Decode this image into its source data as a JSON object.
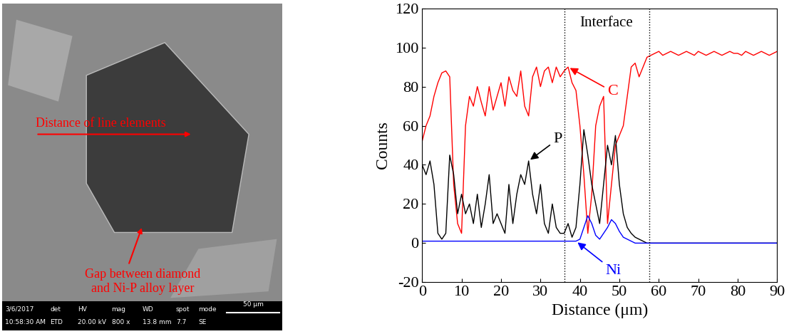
{
  "image": {
    "annotations": [
      "Distance of line elements",
      "Gap between diamond\nand Ni-P alloy layer"
    ],
    "info_bar": {
      "header": [
        "3/6/2017",
        "det",
        "HV",
        "mag",
        "WD",
        "spot",
        "mode"
      ],
      "values": [
        "10:58:30 AM",
        "ETD",
        "20.00 kV",
        "800 x",
        "13.8 mm",
        "7.7",
        "SE"
      ],
      "scale_bar": "50 μm"
    }
  },
  "chart_data": {
    "type": "line",
    "x_label": "Distance (μm)",
    "y_label": "Counts",
    "xlim": [
      0,
      90
    ],
    "xticks": [
      0,
      10,
      20,
      30,
      40,
      50,
      60,
      70,
      80,
      90
    ],
    "ylim": [
      -20,
      120
    ],
    "yticks": [
      -20,
      0,
      20,
      40,
      60,
      80,
      100,
      120
    ],
    "interface": {
      "label": "Interface",
      "x": [
        36,
        57.5
      ]
    },
    "x": [
      0,
      1,
      2,
      3,
      4,
      5,
      6,
      7,
      8,
      9,
      10,
      11,
      12,
      13,
      14,
      15,
      16,
      17,
      18,
      19,
      20,
      21,
      22,
      23,
      24,
      25,
      26,
      27,
      28,
      29,
      30,
      31,
      32,
      33,
      34,
      35,
      36,
      37,
      38,
      39,
      40,
      41,
      42,
      43,
      44,
      45,
      46,
      47,
      48,
      49,
      50,
      51,
      52,
      53,
      54,
      55,
      56,
      57,
      58,
      59,
      60,
      61,
      62,
      63,
      64,
      65,
      66,
      67,
      68,
      69,
      70,
      71,
      72,
      73,
      74,
      75,
      76,
      77,
      78,
      79,
      80,
      81,
      82,
      83,
      84,
      85,
      86,
      87,
      88,
      89,
      90
    ],
    "series": [
      {
        "name": "C",
        "color": "#ff0000",
        "values": [
          52,
          60,
          65,
          75,
          82,
          87,
          88,
          85,
          30,
          10,
          5,
          60,
          75,
          70,
          80,
          72,
          65,
          80,
          68,
          75,
          82,
          70,
          85,
          78,
          75,
          88,
          70,
          65,
          85,
          90,
          80,
          88,
          90,
          82,
          90,
          85,
          88,
          90,
          82,
          78,
          60,
          35,
          5,
          25,
          60,
          70,
          75,
          10,
          30,
          50,
          55,
          60,
          75,
          90,
          92,
          85,
          90,
          95,
          96,
          97,
          98,
          96,
          97,
          98,
          97,
          96,
          97,
          98,
          97,
          96,
          98,
          97,
          96,
          97,
          98,
          97,
          96,
          97,
          98,
          97,
          97,
          96,
          98,
          97,
          96,
          97,
          98,
          97,
          96,
          97,
          98
        ]
      },
      {
        "name": "P",
        "color": "#000000",
        "values": [
          40,
          35,
          42,
          30,
          5,
          2,
          5,
          45,
          35,
          15,
          25,
          15,
          20,
          10,
          25,
          8,
          20,
          35,
          10,
          15,
          10,
          5,
          30,
          10,
          25,
          35,
          30,
          42,
          25,
          15,
          30,
          10,
          5,
          20,
          8,
          5,
          5,
          10,
          3,
          8,
          30,
          58,
          45,
          30,
          20,
          10,
          30,
          50,
          40,
          55,
          30,
          15,
          8,
          5,
          3,
          2,
          1,
          0,
          0,
          0,
          0,
          0,
          0,
          0,
          0,
          0,
          0,
          0,
          0,
          0,
          0,
          0,
          0,
          0,
          0,
          0,
          0,
          0,
          0,
          0,
          0,
          0,
          0,
          0,
          0,
          0,
          0,
          0,
          0,
          0,
          0
        ]
      },
      {
        "name": "Ni",
        "color": "#0000ff",
        "values": [
          1,
          1,
          1,
          1,
          1,
          1,
          1,
          1,
          1,
          1,
          1,
          1,
          1,
          1,
          1,
          1,
          1,
          1,
          1,
          1,
          1,
          1,
          1,
          1,
          1,
          1,
          1,
          1,
          1,
          1,
          1,
          1,
          1,
          1,
          1,
          1,
          1,
          1,
          1,
          1,
          2,
          8,
          14,
          10,
          4,
          2,
          5,
          8,
          12,
          10,
          6,
          3,
          2,
          1,
          0,
          0,
          0,
          0,
          0,
          0,
          0,
          0,
          0,
          0,
          0,
          0,
          0,
          0,
          0,
          0,
          0,
          0,
          0,
          0,
          0,
          0,
          0,
          0,
          0,
          0,
          0,
          0,
          0,
          0,
          0,
          0,
          0,
          0,
          0,
          0,
          0
        ]
      }
    ]
  }
}
